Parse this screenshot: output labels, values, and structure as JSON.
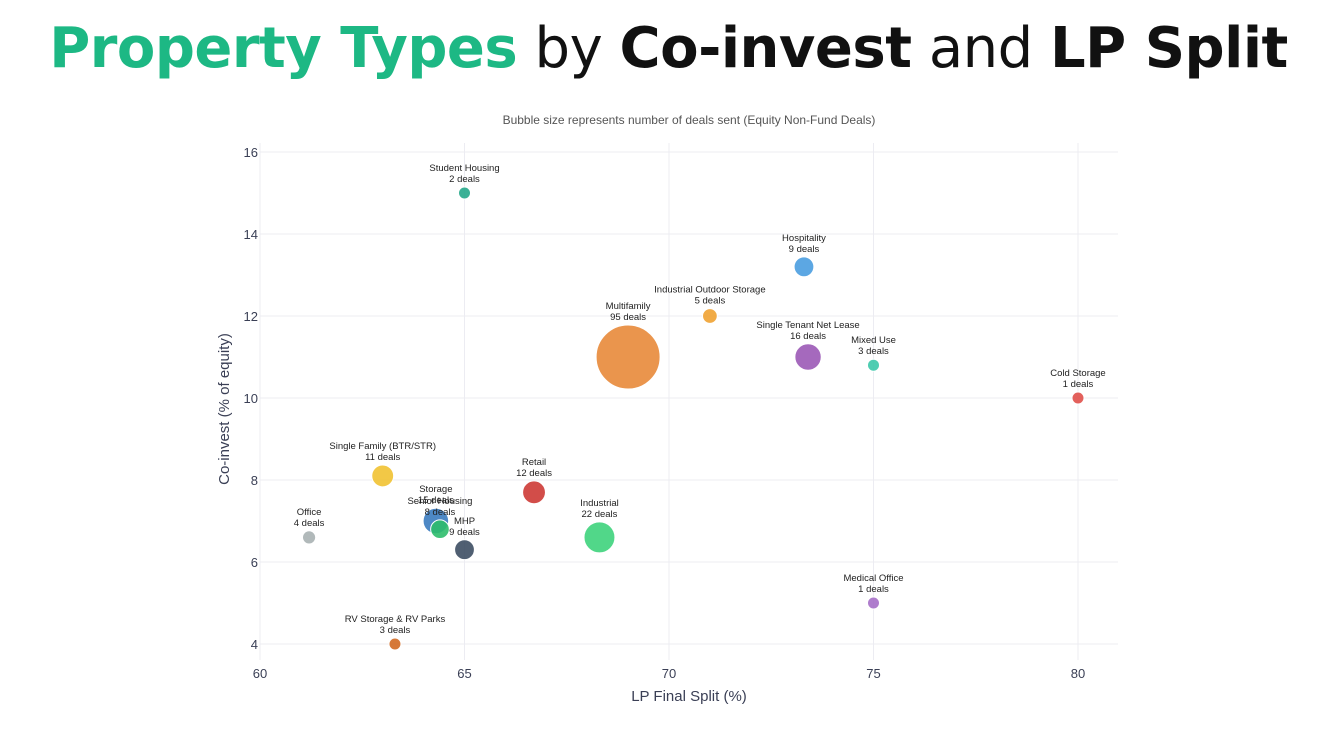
{
  "header": {
    "title_part1": "Property Types",
    "title_part2": "by",
    "title_part3": "Co-invest",
    "title_part4": "and",
    "title_part5": "LP Split"
  },
  "chart_data": {
    "type": "scatter",
    "subtitle": "Bubble size represents number of deals sent (Equity Non-Fund Deals)",
    "xlabel": "LP Final Split (%)",
    "ylabel": "Co-invest (% of equity)",
    "xlim": [
      60,
      81
    ],
    "ylim": [
      3.6,
      16.2
    ],
    "xticks": [
      60,
      65,
      70,
      75,
      80
    ],
    "yticks": [
      4,
      6,
      8,
      10,
      12,
      14,
      16
    ],
    "grid": true,
    "size_label_suffix": "deals",
    "points": [
      {
        "name": "Student Housing",
        "x": 65,
        "y": 15,
        "deals": 2,
        "color": "#26a98b"
      },
      {
        "name": "Hospitality",
        "x": 73.3,
        "y": 13.2,
        "deals": 9,
        "color": "#4a9de0"
      },
      {
        "name": "Industrial Outdoor Storage",
        "x": 71,
        "y": 12,
        "deals": 5,
        "color": "#f0a232"
      },
      {
        "name": "Multifamily",
        "x": 69,
        "y": 11,
        "deals": 95,
        "color": "#e8893a"
      },
      {
        "name": "Single Tenant Net Lease",
        "x": 73.4,
        "y": 11,
        "deals": 16,
        "color": "#9b59b6"
      },
      {
        "name": "Mixed Use",
        "x": 75,
        "y": 10.8,
        "deals": 3,
        "color": "#3cc8aa"
      },
      {
        "name": "Cold Storage",
        "x": 80,
        "y": 10,
        "deals": 1,
        "color": "#e0504a"
      },
      {
        "name": "Single Family (BTR/STR)",
        "x": 63,
        "y": 8.1,
        "deals": 11,
        "color": "#f1c232"
      },
      {
        "name": "Retail",
        "x": 66.7,
        "y": 7.7,
        "deals": 12,
        "color": "#cd3a35"
      },
      {
        "name": "Storage",
        "x": 64.3,
        "y": 7,
        "deals": 15,
        "color": "#3a7bbf"
      },
      {
        "name": "Senior Housing",
        "x": 64.4,
        "y": 6.8,
        "deals": 8,
        "color": "#2ebd6b"
      },
      {
        "name": "Industrial",
        "x": 68.3,
        "y": 6.6,
        "deals": 22,
        "color": "#3ed37c"
      },
      {
        "name": "Office",
        "x": 61.2,
        "y": 6.6,
        "deals": 4,
        "color": "#a9b1b3"
      },
      {
        "name": "MHP",
        "x": 65,
        "y": 6.3,
        "deals": 9,
        "color": "#3d4e63"
      },
      {
        "name": "Medical Office",
        "x": 75,
        "y": 5,
        "deals": 1,
        "color": "#a66fc8"
      },
      {
        "name": "RV Storage & RV Parks",
        "x": 63.3,
        "y": 4,
        "deals": 3,
        "color": "#d26a24"
      }
    ]
  }
}
